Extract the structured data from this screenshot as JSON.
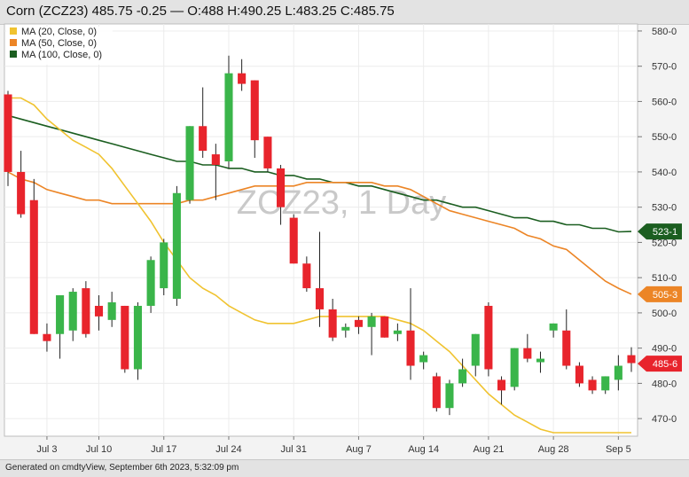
{
  "header": {
    "title": "Corn (ZCZ23) 485.75 -0.25 — O:488 H:490.25 L:483.25 C:485.75"
  },
  "footer": {
    "text": "Generated on cmdtyView, September 6th 2023, 5:32:09 pm"
  },
  "chart_data": {
    "type": "candlestick",
    "watermark": "ZCZ23, 1 Day",
    "ylim": [
      465,
      582
    ],
    "y_ticks": [
      "580-0",
      "570-0",
      "560-0",
      "550-0",
      "540-0",
      "530-0",
      "520-0",
      "510-0",
      "500-0",
      "490-0",
      "480-0",
      "470-0"
    ],
    "y_tick_values": [
      580,
      570,
      560,
      550,
      540,
      530,
      520,
      510,
      500,
      490,
      480,
      470
    ],
    "x_ticks": [
      {
        "label": "Jul 3",
        "date": "2023-07-03"
      },
      {
        "label": "Jul 10",
        "date": "2023-07-10"
      },
      {
        "label": "Jul 17",
        "date": "2023-07-17"
      },
      {
        "label": "Jul 24",
        "date": "2023-07-24"
      },
      {
        "label": "Jul 31",
        "date": "2023-07-31"
      },
      {
        "label": "Aug 7",
        "date": "2023-08-07"
      },
      {
        "label": "Aug 14",
        "date": "2023-08-14"
      },
      {
        "label": "Aug 21",
        "date": "2023-08-21"
      },
      {
        "label": "Aug 28",
        "date": "2023-08-28"
      },
      {
        "label": "Sep 5",
        "date": "2023-09-05"
      }
    ],
    "colors": {
      "up": "#3ab54a",
      "down": "#e8242c",
      "wick": "#222222",
      "ma20": "#f0c330",
      "ma50": "#ec8526",
      "ma100": "#1b5e20"
    },
    "legend": [
      {
        "name": "MA (20, Close, 0)",
        "color": "#f0c330"
      },
      {
        "name": "MA (50, Close, 0)",
        "color": "#ec8526"
      },
      {
        "name": "MA (100, Close, 0)",
        "color": "#1b5e20"
      }
    ],
    "last_values": [
      {
        "label": "523-1",
        "value": 523.1,
        "color": "#1b5e20"
      },
      {
        "label": "505-3",
        "value": 505.3,
        "color": "#ec8526"
      },
      {
        "label": "485-6",
        "value": 485.6,
        "color": "#e8242c"
      }
    ],
    "candles": [
      {
        "date": "2023-06-28",
        "open": 562,
        "high": 563,
        "low": 536,
        "close": 540
      },
      {
        "date": "2023-06-29",
        "open": 540,
        "high": 546,
        "low": 527,
        "close": 528
      },
      {
        "date": "2023-06-30",
        "open": 532,
        "high": 538,
        "low": 494,
        "close": 494
      },
      {
        "date": "2023-07-03",
        "open": 494,
        "high": 497,
        "low": 489,
        "close": 492
      },
      {
        "date": "2023-07-05",
        "open": 494,
        "high": 505,
        "low": 487,
        "close": 505
      },
      {
        "date": "2023-07-06",
        "open": 495,
        "high": 507,
        "low": 492,
        "close": 506
      },
      {
        "date": "2023-07-07",
        "open": 507,
        "high": 509,
        "low": 493,
        "close": 494
      },
      {
        "date": "2023-07-10",
        "open": 502,
        "high": 505,
        "low": 495,
        "close": 499
      },
      {
        "date": "2023-07-11",
        "open": 498,
        "high": 506,
        "low": 496,
        "close": 503
      },
      {
        "date": "2023-07-12",
        "open": 502,
        "high": 502,
        "low": 483,
        "close": 484
      },
      {
        "date": "2023-07-13",
        "open": 484,
        "high": 503,
        "low": 481,
        "close": 502
      },
      {
        "date": "2023-07-14",
        "open": 502,
        "high": 516,
        "low": 500,
        "close": 515
      },
      {
        "date": "2023-07-17",
        "open": 507,
        "high": 521,
        "low": 505,
        "close": 520
      },
      {
        "date": "2023-07-18",
        "open": 504,
        "high": 536,
        "low": 502,
        "close": 534
      },
      {
        "date": "2023-07-19",
        "open": 532,
        "high": 553,
        "low": 531,
        "close": 553
      },
      {
        "date": "2023-07-20",
        "open": 553,
        "high": 564,
        "low": 544,
        "close": 546
      },
      {
        "date": "2023-07-21",
        "open": 545,
        "high": 548,
        "low": 532,
        "close": 542
      },
      {
        "date": "2023-07-24",
        "open": 543,
        "high": 573,
        "low": 541,
        "close": 568
      },
      {
        "date": "2023-07-25",
        "open": 568,
        "high": 572,
        "low": 563,
        "close": 565
      },
      {
        "date": "2023-07-26",
        "open": 566,
        "high": 566,
        "low": 544,
        "close": 549
      },
      {
        "date": "2023-07-27",
        "open": 550,
        "high": 550,
        "low": 540,
        "close": 541
      },
      {
        "date": "2023-07-28",
        "open": 541,
        "high": 542,
        "low": 525,
        "close": 530
      },
      {
        "date": "2023-07-31",
        "open": 527,
        "high": 528,
        "low": 514,
        "close": 514
      },
      {
        "date": "2023-08-01",
        "open": 514,
        "high": 516,
        "low": 506,
        "close": 507
      },
      {
        "date": "2023-08-02",
        "open": 507,
        "high": 523,
        "low": 496,
        "close": 501
      },
      {
        "date": "2023-08-03",
        "open": 501,
        "high": 504,
        "low": 492,
        "close": 493
      },
      {
        "date": "2023-08-04",
        "open": 495,
        "high": 497,
        "low": 493,
        "close": 496
      },
      {
        "date": "2023-08-07",
        "open": 498,
        "high": 499,
        "low": 494,
        "close": 496
      },
      {
        "date": "2023-08-08",
        "open": 496,
        "high": 500,
        "low": 488,
        "close": 499
      },
      {
        "date": "2023-08-09",
        "open": 499,
        "high": 499,
        "low": 493,
        "close": 493
      },
      {
        "date": "2023-08-10",
        "open": 494,
        "high": 497,
        "low": 492,
        "close": 495
      },
      {
        "date": "2023-08-11",
        "open": 495,
        "high": 507,
        "low": 481,
        "close": 485
      },
      {
        "date": "2023-08-14",
        "open": 486,
        "high": 489,
        "low": 484,
        "close": 488
      },
      {
        "date": "2023-08-15",
        "open": 482,
        "high": 483,
        "low": 472,
        "close": 473
      },
      {
        "date": "2023-08-16",
        "open": 473,
        "high": 481,
        "low": 471,
        "close": 480
      },
      {
        "date": "2023-08-17",
        "open": 480,
        "high": 487,
        "low": 479,
        "close": 484
      },
      {
        "date": "2023-08-18",
        "open": 485,
        "high": 494,
        "low": 482,
        "close": 494
      },
      {
        "date": "2023-08-21",
        "open": 502,
        "high": 503,
        "low": 482,
        "close": 484
      },
      {
        "date": "2023-08-22",
        "open": 481,
        "high": 482,
        "low": 474,
        "close": 478
      },
      {
        "date": "2023-08-23",
        "open": 479,
        "high": 490,
        "low": 478,
        "close": 490
      },
      {
        "date": "2023-08-24",
        "open": 490,
        "high": 494,
        "low": 486,
        "close": 487
      },
      {
        "date": "2023-08-25",
        "open": 486,
        "high": 489,
        "low": 483,
        "close": 487
      },
      {
        "date": "2023-08-28",
        "open": 495,
        "high": 497,
        "low": 493,
        "close": 497
      },
      {
        "date": "2023-08-29",
        "open": 495,
        "high": 501,
        "low": 484,
        "close": 485
      },
      {
        "date": "2023-08-30",
        "open": 485,
        "high": 486,
        "low": 479,
        "close": 480
      },
      {
        "date": "2023-08-31",
        "open": 481,
        "high": 482,
        "low": 477,
        "close": 478
      },
      {
        "date": "2023-09-01",
        "open": 478,
        "high": 482,
        "low": 477,
        "close": 482
      },
      {
        "date": "2023-09-05",
        "open": 481,
        "high": 488,
        "low": 478,
        "close": 485
      },
      {
        "date": "2023-09-06",
        "open": 488,
        "high": 490.25,
        "low": 483.25,
        "close": 485.75
      }
    ],
    "ma20": [
      561,
      561,
      559,
      555,
      552,
      549,
      547,
      545,
      541,
      536,
      531,
      526,
      520,
      515,
      510,
      507,
      505,
      502,
      500,
      498,
      497,
      497,
      497,
      498,
      499,
      499,
      499,
      499,
      499,
      499,
      498,
      497,
      495,
      492,
      489,
      485,
      481,
      477,
      474,
      471,
      469,
      467,
      466,
      466,
      466,
      466,
      466,
      466,
      466
    ],
    "ma50": [
      540,
      538,
      537,
      535,
      534,
      533,
      532,
      532,
      531,
      531,
      531,
      531,
      531,
      531,
      532,
      532,
      533,
      534,
      535,
      536,
      536,
      536,
      536,
      537,
      537,
      537,
      537,
      537,
      537,
      536,
      536,
      535,
      533,
      531,
      529,
      528,
      527,
      526,
      525,
      524,
      522,
      521,
      519,
      518,
      515,
      512,
      509,
      507,
      505.3
    ],
    "ma100": [
      556,
      555,
      554,
      553,
      552,
      551,
      550,
      549,
      548,
      547,
      546,
      545,
      544,
      543,
      543,
      542,
      542,
      541,
      541,
      540,
      540,
      539,
      539,
      538,
      538,
      537,
      537,
      536,
      536,
      535,
      534,
      533,
      532,
      532,
      531,
      530,
      530,
      529,
      528,
      527,
      527,
      526,
      526,
      525,
      525,
      524,
      524,
      523,
      523.1
    ]
  }
}
